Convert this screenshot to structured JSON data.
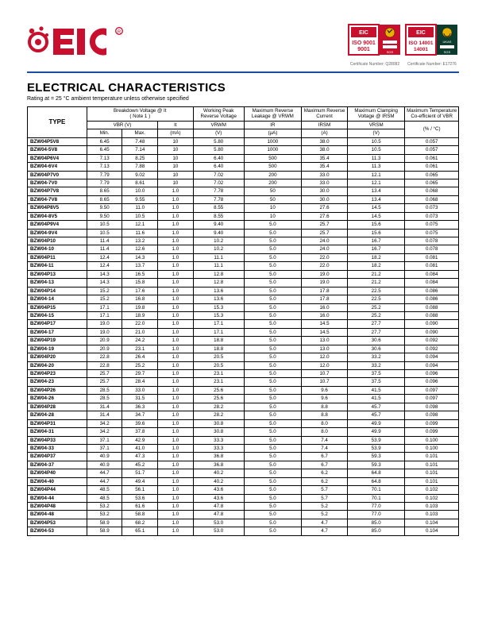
{
  "brand_color": "#c8102e",
  "divider_color": "#1a4da0",
  "title": "ELECTRICAL CHARACTERISTICS",
  "subtitle": "Rating at = 25 °C ambient temperature unless otherwise specified",
  "cert1_label": "ISO 9001",
  "cert2_label": "ISO 14001",
  "cert1_caption": "Certificate Number: Q28082",
  "cert2_caption": "Certificate Number: E17276",
  "header": {
    "type": "TYPE",
    "bv_top": "Breakdown Voltage @ It",
    "bv_note": "( Note 1 )",
    "wp": "Working Peak Reverse Voltage",
    "ml": "Maximum Reverse Leakage @ VRWM",
    "mr": "Maximum Reverse Current",
    "mc": "Maximum Clamping Voltage @ IRSM",
    "mt": "Maximum Temperature Co-efficient of VBR",
    "vbr": "VBR (V)",
    "it": "It",
    "vrwm": "VRWM",
    "ir": "IR",
    "irsm": "IRSM",
    "vrsm": "VRSM",
    "min": "Min.",
    "max": "Max.",
    "ma": "(mA)",
    "v": "(V)",
    "ua": "(μA)",
    "a": "(A)",
    "pct": "(% / °C)"
  },
  "rows": [
    {
      "type": "BZW04P5V8",
      "min": "6.45",
      "max": "7.48",
      "it": "10",
      "vrwm": "5.80",
      "ir": "1000",
      "irsm": "38.0",
      "vrsm": "10.5",
      "tc": "0.057"
    },
    {
      "type": "BZW04-5V8",
      "min": "6.45",
      "max": "7.14",
      "it": "10",
      "vrwm": "5.80",
      "ir": "1000",
      "irsm": "38.0",
      "vrsm": "10.5",
      "tc": "0.057"
    },
    {
      "type": "BZW04P6V4",
      "min": "7.13",
      "max": "8.25",
      "it": "10",
      "vrwm": "6.40",
      "ir": "500",
      "irsm": "35.4",
      "vrsm": "11.3",
      "tc": "0.061"
    },
    {
      "type": "BZW04-6V4",
      "min": "7.13",
      "max": "7.88",
      "it": "10",
      "vrwm": "6.40",
      "ir": "500",
      "irsm": "35.4",
      "vrsm": "11.3",
      "tc": "0.061"
    },
    {
      "type": "BZW04P7V0",
      "min": "7.79",
      "max": "9.02",
      "it": "10",
      "vrwm": "7.02",
      "ir": "200",
      "irsm": "33.0",
      "vrsm": "12.1",
      "tc": "0.065"
    },
    {
      "type": "BZW04-7V0",
      "min": "7.79",
      "max": "8.61",
      "it": "10",
      "vrwm": "7.02",
      "ir": "200",
      "irsm": "33.0",
      "vrsm": "12.1",
      "tc": "0.065"
    },
    {
      "type": "BZW04P7V8",
      "min": "8.65",
      "max": "10.0",
      "it": "1.0",
      "vrwm": "7.78",
      "ir": "50",
      "irsm": "30.0",
      "vrsm": "13.4",
      "tc": "0.068"
    },
    {
      "type": "BZW04-7V8",
      "min": "8.65",
      "max": "9.55",
      "it": "1.0",
      "vrwm": "7.78",
      "ir": "50",
      "irsm": "30.0",
      "vrsm": "13.4",
      "tc": "0.068"
    },
    {
      "type": "BZW04P8V5",
      "min": "9.50",
      "max": "11.0",
      "it": "1.0",
      "vrwm": "8.55",
      "ir": "10",
      "irsm": "27.6",
      "vrsm": "14.5",
      "tc": "0.073"
    },
    {
      "type": "BZW04-8V5",
      "min": "9.50",
      "max": "10.5",
      "it": "1.0",
      "vrwm": "8.55",
      "ir": "10",
      "irsm": "27.6",
      "vrsm": "14.5",
      "tc": "0.073"
    },
    {
      "type": "BZW04P9V4",
      "min": "10.5",
      "max": "12.1",
      "it": "1.0",
      "vrwm": "9.40",
      "ir": "5.0",
      "irsm": "25.7",
      "vrsm": "15.6",
      "tc": "0.075"
    },
    {
      "type": "BZW04-9V4",
      "min": "10.5",
      "max": "11.6",
      "it": "1.0",
      "vrwm": "9.40",
      "ir": "5.0",
      "irsm": "25.7",
      "vrsm": "15.6",
      "tc": "0.075"
    },
    {
      "type": "BZW04P10",
      "min": "11.4",
      "max": "13.2",
      "it": "1.0",
      "vrwm": "10.2",
      "ir": "5.0",
      "irsm": "24.0",
      "vrsm": "16.7",
      "tc": "0.078"
    },
    {
      "type": "BZW04-10",
      "min": "11.4",
      "max": "12.6",
      "it": "1.0",
      "vrwm": "10.2",
      "ir": "5.0",
      "irsm": "24.0",
      "vrsm": "16.7",
      "tc": "0.078"
    },
    {
      "type": "BZW04P11",
      "min": "12.4",
      "max": "14.3",
      "it": "1.0",
      "vrwm": "11.1",
      "ir": "5.0",
      "irsm": "22.0",
      "vrsm": "18.2",
      "tc": "0.081"
    },
    {
      "type": "BZW04-11",
      "min": "12.4",
      "max": "13.7",
      "it": "1.0",
      "vrwm": "11.1",
      "ir": "5.0",
      "irsm": "22.0",
      "vrsm": "18.2",
      "tc": "0.081"
    },
    {
      "type": "BZW04P13",
      "min": "14.3",
      "max": "16.5",
      "it": "1.0",
      "vrwm": "12.8",
      "ir": "5.0",
      "irsm": "19.0",
      "vrsm": "21.2",
      "tc": "0.084"
    },
    {
      "type": "BZW04-13",
      "min": "14.3",
      "max": "15.8",
      "it": "1.0",
      "vrwm": "12.8",
      "ir": "5.0",
      "irsm": "19.0",
      "vrsm": "21.2",
      "tc": "0.084"
    },
    {
      "type": "BZW04P14",
      "min": "15.2",
      "max": "17.6",
      "it": "1.0",
      "vrwm": "13.6",
      "ir": "5.0",
      "irsm": "17.8",
      "vrsm": "22.5",
      "tc": "0.086"
    },
    {
      "type": "BZW04-14",
      "min": "15.2",
      "max": "16.8",
      "it": "1.0",
      "vrwm": "13.6",
      "ir": "5.0",
      "irsm": "17.8",
      "vrsm": "22.5",
      "tc": "0.086"
    },
    {
      "type": "BZW04P15",
      "min": "17.1",
      "max": "19.8",
      "it": "1.0",
      "vrwm": "15.3",
      "ir": "5.0",
      "irsm": "16.0",
      "vrsm": "25.2",
      "tc": "0.088"
    },
    {
      "type": "BZW04-15",
      "min": "17.1",
      "max": "18.9",
      "it": "1.0",
      "vrwm": "15.3",
      "ir": "5.0",
      "irsm": "16.0",
      "vrsm": "25.2",
      "tc": "0.088"
    },
    {
      "type": "BZW04P17",
      "min": "19.0",
      "max": "22.0",
      "it": "1.0",
      "vrwm": "17.1",
      "ir": "5.0",
      "irsm": "14.5",
      "vrsm": "27.7",
      "tc": "0.090"
    },
    {
      "type": "BZW04-17",
      "min": "19.0",
      "max": "21.0",
      "it": "1.0",
      "vrwm": "17.1",
      "ir": "5.0",
      "irsm": "14.5",
      "vrsm": "27.7",
      "tc": "0.090"
    },
    {
      "type": "BZW04P19",
      "min": "20.9",
      "max": "24.2",
      "it": "1.0",
      "vrwm": "18.8",
      "ir": "5.0",
      "irsm": "13.0",
      "vrsm": "30.6",
      "tc": "0.092"
    },
    {
      "type": "BZW04-19",
      "min": "20.9",
      "max": "23.1",
      "it": "1.0",
      "vrwm": "18.8",
      "ir": "5.0",
      "irsm": "13.0",
      "vrsm": "30.6",
      "tc": "0.092"
    },
    {
      "type": "BZW04P20",
      "min": "22.8",
      "max": "26.4",
      "it": "1.0",
      "vrwm": "20.5",
      "ir": "5.0",
      "irsm": "12.0",
      "vrsm": "33.2",
      "tc": "0.094"
    },
    {
      "type": "BZW04-20",
      "min": "22.8",
      "max": "25.2",
      "it": "1.0",
      "vrwm": "20.5",
      "ir": "5.0",
      "irsm": "12.0",
      "vrsm": "33.2",
      "tc": "0.094"
    },
    {
      "type": "BZW04P23",
      "min": "25.7",
      "max": "29.7",
      "it": "1.0",
      "vrwm": "23.1",
      "ir": "5.0",
      "irsm": "10.7",
      "vrsm": "37.5",
      "tc": "0.096"
    },
    {
      "type": "BZW04-23",
      "min": "25.7",
      "max": "28.4",
      "it": "1.0",
      "vrwm": "23.1",
      "ir": "5.0",
      "irsm": "10.7",
      "vrsm": "37.5",
      "tc": "0.096"
    },
    {
      "type": "BZW04P26",
      "min": "28.5",
      "max": "33.0",
      "it": "1.0",
      "vrwm": "25.6",
      "ir": "5.0",
      "irsm": "9.6",
      "vrsm": "41.5",
      "tc": "0.097"
    },
    {
      "type": "BZW04-26",
      "min": "28.5",
      "max": "31.5",
      "it": "1.0",
      "vrwm": "25.6",
      "ir": "5.0",
      "irsm": "9.6",
      "vrsm": "41.5",
      "tc": "0.097"
    },
    {
      "type": "BZW04P28",
      "min": "31.4",
      "max": "36.3",
      "it": "1.0",
      "vrwm": "28.2",
      "ir": "5.0",
      "irsm": "8.8",
      "vrsm": "45.7",
      "tc": "0.098"
    },
    {
      "type": "BZW04-28",
      "min": "31.4",
      "max": "34.7",
      "it": "1.0",
      "vrwm": "28.2",
      "ir": "5.0",
      "irsm": "8.8",
      "vrsm": "45.7",
      "tc": "0.098"
    },
    {
      "type": "BZW04P31",
      "min": "34.2",
      "max": "39.6",
      "it": "1.0",
      "vrwm": "30.8",
      "ir": "5.0",
      "irsm": "8.0",
      "vrsm": "49.9",
      "tc": "0.099"
    },
    {
      "type": "BZW04-31",
      "min": "34.2",
      "max": "37.8",
      "it": "1.0",
      "vrwm": "30.8",
      "ir": "5.0",
      "irsm": "8.0",
      "vrsm": "49.9",
      "tc": "0.099"
    },
    {
      "type": "BZW04P33",
      "min": "37.1",
      "max": "42.9",
      "it": "1.0",
      "vrwm": "33.3",
      "ir": "5.0",
      "irsm": "7.4",
      "vrsm": "53.9",
      "tc": "0.100"
    },
    {
      "type": "BZW04-33",
      "min": "37.1",
      "max": "41.0",
      "it": "1.0",
      "vrwm": "33.3",
      "ir": "5.0",
      "irsm": "7.4",
      "vrsm": "53.9",
      "tc": "0.100"
    },
    {
      "type": "BZW04P37",
      "min": "40.9",
      "max": "47.3",
      "it": "1.0",
      "vrwm": "36.8",
      "ir": "5.0",
      "irsm": "6.7",
      "vrsm": "59.3",
      "tc": "0.101"
    },
    {
      "type": "BZW04-37",
      "min": "40.9",
      "max": "45.2",
      "it": "1.0",
      "vrwm": "36.8",
      "ir": "5.0",
      "irsm": "6.7",
      "vrsm": "59.3",
      "tc": "0.101"
    },
    {
      "type": "BZW04P40",
      "min": "44.7",
      "max": "51.7",
      "it": "1.0",
      "vrwm": "40.2",
      "ir": "5.0",
      "irsm": "6.2",
      "vrsm": "64.8",
      "tc": "0.101"
    },
    {
      "type": "BZW04-40",
      "min": "44.7",
      "max": "49.4",
      "it": "1.0",
      "vrwm": "40.2",
      "ir": "5.0",
      "irsm": "6.2",
      "vrsm": "64.8",
      "tc": "0.101"
    },
    {
      "type": "BZW04P44",
      "min": "48.5",
      "max": "56.1",
      "it": "1.0",
      "vrwm": "43.6",
      "ir": "5.0",
      "irsm": "5.7",
      "vrsm": "70.1",
      "tc": "0.102"
    },
    {
      "type": "BZW04-44",
      "min": "48.5",
      "max": "53.6",
      "it": "1.0",
      "vrwm": "43.6",
      "ir": "5.0",
      "irsm": "5.7",
      "vrsm": "70.1",
      "tc": "0.102"
    },
    {
      "type": "BZW04P48",
      "min": "53.2",
      "max": "61.6",
      "it": "1.0",
      "vrwm": "47.8",
      "ir": "5.0",
      "irsm": "5.2",
      "vrsm": "77.0",
      "tc": "0.103"
    },
    {
      "type": "BZW04-48",
      "min": "53.2",
      "max": "58.8",
      "it": "1.0",
      "vrwm": "47.8",
      "ir": "5.0",
      "irsm": "5.2",
      "vrsm": "77.0",
      "tc": "0.103"
    },
    {
      "type": "BZW04P53",
      "min": "58.9",
      "max": "68.2",
      "it": "1.0",
      "vrwm": "53.0",
      "ir": "5.0",
      "irsm": "4.7",
      "vrsm": "85.0",
      "tc": "0.104"
    },
    {
      "type": "BZW04-53",
      "min": "58.9",
      "max": "65.1",
      "it": "1.0",
      "vrwm": "53.0",
      "ir": "5.0",
      "irsm": "4.7",
      "vrsm": "85.0",
      "tc": "0.104"
    }
  ]
}
